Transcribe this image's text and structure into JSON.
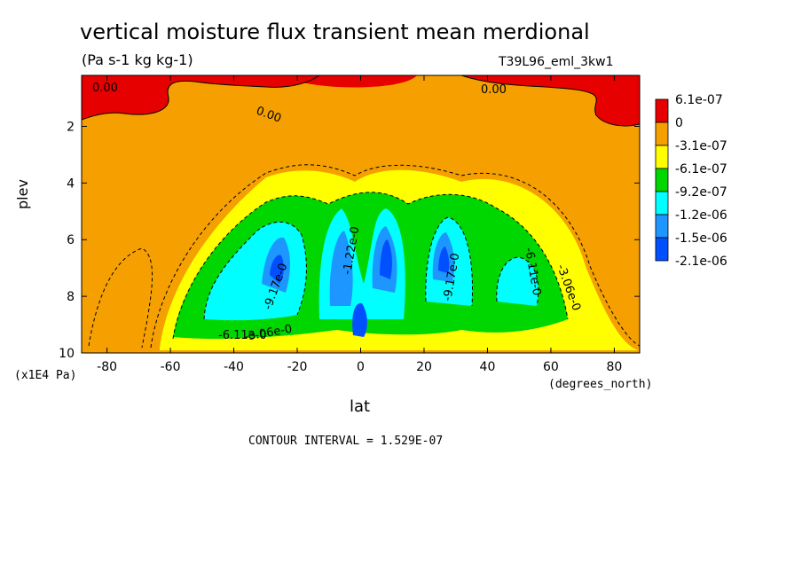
{
  "chart_data": {
    "type": "heatmap",
    "title": "vertical moisture flux transient mean merdional",
    "units_label": "(Pa s-1 kg kg-1)",
    "run_label": "T39L96_eml_3kw1",
    "xlabel": "lat",
    "x_units": "(degrees_north)",
    "ylabel": "plev",
    "y_units": "(x1E4 Pa)",
    "xlim": [
      -88,
      88
    ],
    "ylim": [
      10,
      0.2
    ],
    "x_ticks": [
      "-80",
      "-60",
      "-40",
      "-20",
      "0",
      "20",
      "40",
      "60",
      "80"
    ],
    "y_ticks": [
      "2",
      "4",
      "6",
      "8",
      "10"
    ],
    "colorbar": {
      "labels": [
        "6.1e-07",
        "0",
        "-3.1e-07",
        "-6.1e-07",
        "-9.2e-07",
        "-1.2e-06",
        "-1.5e-06",
        "-2.1e-06"
      ],
      "colors": [
        "#e60000",
        "#f5a000",
        "#ffff00",
        "#00d600",
        "#00ffff",
        "#1e96ff",
        "#0050ff"
      ]
    },
    "contour_interval": "CONTOUR INTERVAL = 1.529E-07",
    "contour_labels": [
      "0.00",
      "0.00",
      "0.00",
      "-6.11e-0",
      "-3.06e-0",
      "-9.17e-0",
      "-9.17e-0",
      "-6.11e-0",
      "-3.06e-0",
      "-1.22e-0"
    ],
    "cells": [
      {
        "lat": -28,
        "plev": 7.2,
        "value": -2.1e-06
      },
      {
        "lat": -6,
        "plev": 7.0,
        "value": -1.8e-06
      },
      {
        "lat": 8,
        "plev": 6.8,
        "value": -2.1e-06
      },
      {
        "lat": 26,
        "plev": 7.0,
        "value": -1.8e-06
      },
      {
        "lat": 48,
        "plev": 7.8,
        "value": -1e-06
      },
      {
        "lat": -70,
        "plev": 0.8,
        "value": 6.1e-07
      },
      {
        "lat": 76,
        "plev": 1.2,
        "value": 6.1e-07
      }
    ]
  }
}
